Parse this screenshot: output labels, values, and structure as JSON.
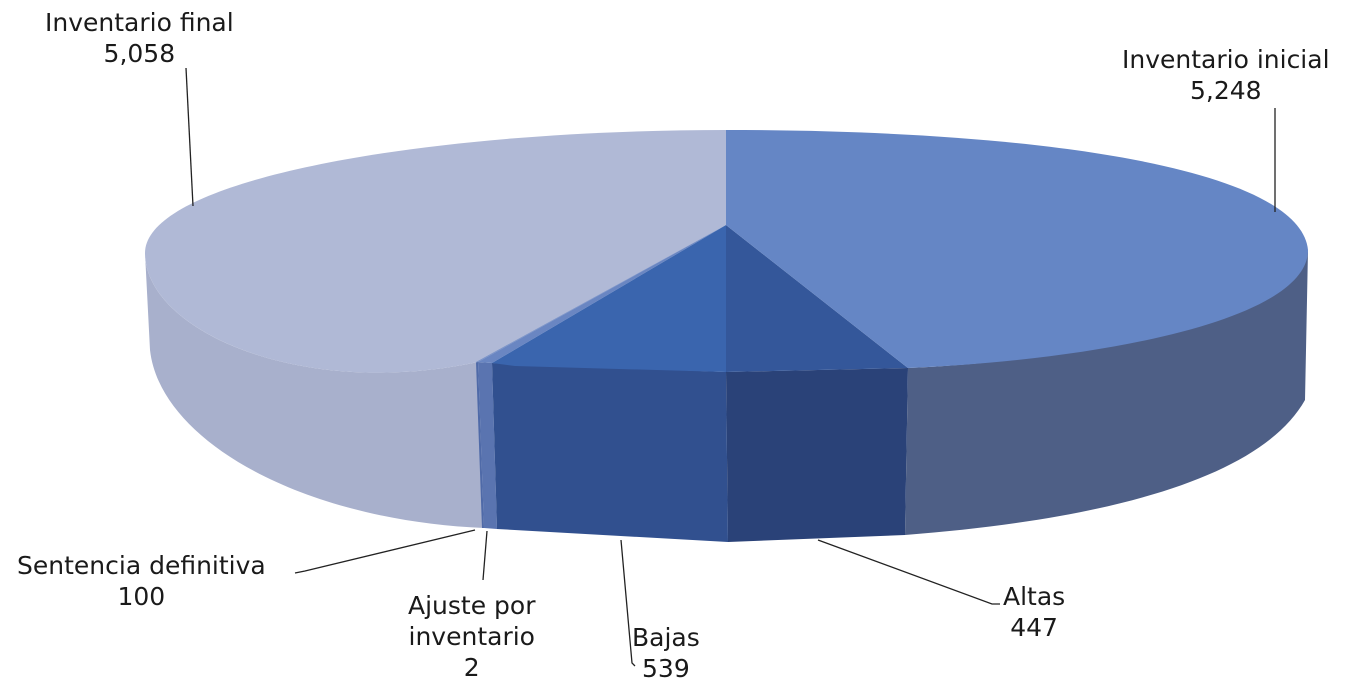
{
  "chart_data": {
    "type": "pie",
    "style": "3d",
    "slices": [
      {
        "label": "Inventario inicial",
        "value": 5248,
        "value_label": "5,248",
        "color": "#6586c5"
      },
      {
        "label": "Altas",
        "value": 447,
        "value_label": "447",
        "color": "#34579a"
      },
      {
        "label": "Bajas",
        "value": 539,
        "value_label": "539",
        "color": "#3a65ae"
      },
      {
        "label": "Ajuste por inventario",
        "value": 2,
        "value_label": "2",
        "color": "#5d7ec0"
      },
      {
        "label": "Sentencia definitiva",
        "value": 100,
        "value_label": "100",
        "color": "#6f8ac6"
      },
      {
        "label": "Inventario final",
        "value": 5058,
        "value_label": "5,058",
        "color": "#b0b9d6"
      }
    ],
    "legend": "none",
    "label_lines": [
      {
        "name": "Ajuste",
        "text": "Ajuste por"
      },
      {
        "name": "inventario",
        "text": "inventario"
      }
    ]
  }
}
